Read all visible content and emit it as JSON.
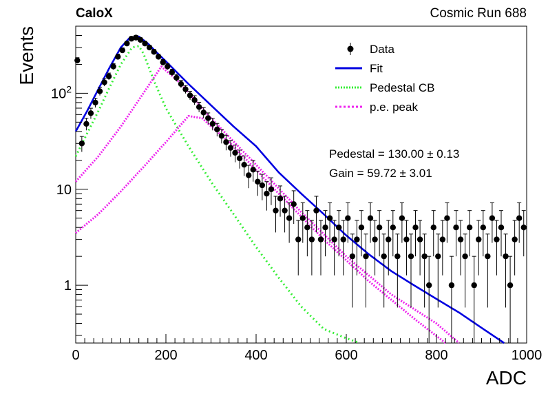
{
  "header": {
    "left_label": "CaloX",
    "right_label": "Cosmic Run 688"
  },
  "fit_results": {
    "pedestal": "Pedestal = 130.00 ± 0.13",
    "gain": "Gain = 59.72 ± 3.01"
  },
  "colors": {
    "data": "#000000",
    "fit": "#0000e0",
    "pedestal_cb": "#33ee33",
    "pe_peak": "#ee22ee"
  },
  "chart_data": {
    "type": "scatter",
    "xlabel": "ADC",
    "ylabel": "Events",
    "xlim": [
      0,
      1000
    ],
    "ylim": [
      0.25,
      500
    ],
    "y_scale": "log",
    "x_ticks": [
      0,
      200,
      400,
      600,
      800,
      1000
    ],
    "x_tick_labels": [
      "0",
      "200",
      "400",
      "600",
      "800",
      "1000"
    ],
    "y_ticks": [
      1,
      10,
      100
    ],
    "y_tick_labels": [
      "1",
      "10",
      "10^2"
    ],
    "legend": {
      "placement": "top-right",
      "entries": [
        {
          "label": "Data",
          "style": "marker"
        },
        {
          "label": "Fit",
          "style": "solid"
        },
        {
          "label": "Pedestal CB",
          "style": "dotted"
        },
        {
          "label": "p.e. peak",
          "style": "dotted"
        }
      ]
    },
    "series": [
      {
        "name": "Fit",
        "x": [
          0,
          25,
          50,
          75,
          100,
          120,
          140,
          160,
          180,
          200,
          250,
          300,
          350,
          400,
          450,
          500,
          550,
          600,
          650,
          700,
          750,
          800,
          850,
          900,
          950
        ],
        "y": [
          40,
          65,
          110,
          185,
          300,
          380,
          390,
          330,
          265,
          215,
          125,
          75,
          45,
          28,
          15,
          9,
          5.5,
          3.3,
          2.1,
          1.4,
          1.0,
          0.72,
          0.52,
          0.36,
          0.25
        ]
      },
      {
        "name": "Pedestal CB",
        "x": [
          0,
          25,
          50,
          75,
          100,
          125,
          140,
          150,
          175,
          200,
          250,
          300,
          350,
          400,
          450,
          500,
          550,
          600,
          630
        ],
        "y": [
          22,
          38,
          65,
          115,
          200,
          300,
          310,
          260,
          130,
          70,
          28,
          12,
          5.5,
          2.5,
          1.2,
          0.6,
          0.35,
          0.28,
          0.25
        ]
      },
      {
        "name": "p.e. peak",
        "x": [
          0,
          50,
          100,
          150,
          190,
          230,
          300,
          400,
          500,
          600,
          700,
          800,
          850
        ],
        "y": [
          12,
          22,
          45,
          100,
          190,
          130,
          55,
          18,
          5.8,
          2.0,
          0.8,
          0.4,
          0.25
        ]
      },
      {
        "name": "p.e. peak",
        "x": [
          0,
          50,
          100,
          150,
          200,
          250,
          280,
          350,
          450,
          550,
          650,
          750,
          820
        ],
        "y": [
          3.5,
          5.5,
          9.5,
          17,
          31,
          58,
          55,
          28,
          9,
          3,
          1.1,
          0.45,
          0.25
        ]
      },
      {
        "name": "Data",
        "x": [
          0,
          10,
          20,
          30,
          40,
          50,
          60,
          70,
          80,
          90,
          100,
          110,
          120,
          130,
          140,
          150,
          160,
          170,
          180,
          190,
          200,
          210,
          220,
          230,
          240,
          250,
          260,
          270,
          280,
          290,
          300,
          310,
          320,
          330,
          340,
          350,
          360,
          370,
          380,
          390,
          400,
          410,
          420,
          430,
          440,
          450,
          460,
          470,
          480,
          490,
          500,
          510,
          520,
          530,
          540,
          550,
          560,
          570,
          580,
          590,
          600,
          610,
          620,
          630,
          640,
          650,
          660,
          670,
          680,
          690,
          700,
          710,
          720,
          730,
          740,
          750,
          760,
          770,
          780,
          790,
          800,
          810,
          820,
          830,
          840,
          850,
          860,
          870,
          880,
          890,
          900,
          910,
          920,
          930,
          940,
          950,
          960,
          970,
          980,
          990
        ],
        "y": [
          220,
          30,
          48,
          62,
          80,
          105,
          130,
          150,
          190,
          240,
          280,
          330,
          370,
          380,
          360,
          330,
          300,
          270,
          240,
          210,
          190,
          165,
          145,
          125,
          110,
          95,
          85,
          72,
          63,
          55,
          48,
          42,
          36,
          31,
          27,
          24,
          21,
          18,
          14,
          16,
          12,
          11,
          9,
          10,
          6,
          8,
          6,
          5,
          7,
          3,
          5,
          4,
          3,
          6,
          3,
          4,
          5,
          3,
          4,
          3,
          5,
          2,
          3,
          4,
          2,
          5,
          3,
          4,
          2,
          3,
          4,
          2,
          5,
          3,
          2,
          4,
          3,
          2,
          1,
          4,
          2,
          3,
          5,
          1,
          4,
          3,
          2,
          4,
          1,
          3,
          4,
          2,
          5,
          3,
          4,
          2,
          1,
          3,
          5,
          4
        ]
      }
    ]
  }
}
